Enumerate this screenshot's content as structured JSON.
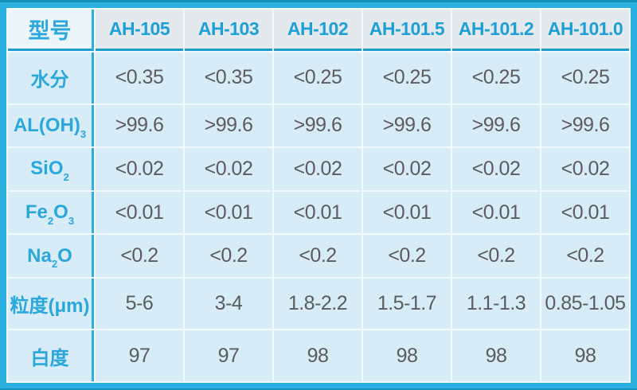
{
  "chart_data": {
    "type": "table",
    "corner_header": "型号",
    "corner_header_parts": [
      {
        "t": "型号"
      }
    ],
    "columns": [
      "AH-105",
      "AH-103",
      "AH-102",
      "AH-101.5",
      "AH-101.2",
      "AH-101.0"
    ],
    "rows": [
      {
        "header": "水分",
        "header_parts": [
          {
            "t": "水分"
          }
        ],
        "values": [
          "<0.35",
          "<0.35",
          "<0.25",
          "<0.25",
          "<0.25",
          "<0.25"
        ]
      },
      {
        "header": "AL(OH)3",
        "header_parts": [
          {
            "t": "AL(OH)"
          },
          {
            "t": "3",
            "sub": true
          }
        ],
        "values": [
          ">99.6",
          ">99.6",
          ">99.6",
          ">99.6",
          ">99.6",
          ">99.6"
        ]
      },
      {
        "header": "SiO2",
        "header_parts": [
          {
            "t": "SiO"
          },
          {
            "t": "2",
            "sub": true
          }
        ],
        "values": [
          "<0.02",
          "<0.02",
          "<0.02",
          "<0.02",
          "<0.02",
          "<0.02"
        ]
      },
      {
        "header": "Fe2O3",
        "header_parts": [
          {
            "t": "Fe"
          },
          {
            "t": "2",
            "sub": true
          },
          {
            "t": "O"
          },
          {
            "t": "3",
            "sub": true
          }
        ],
        "values": [
          "<0.01",
          "<0.01",
          "<0.01",
          "<0.01",
          "<0.01",
          "<0.01"
        ]
      },
      {
        "header": "Na2O",
        "header_parts": [
          {
            "t": "Na"
          },
          {
            "t": "2",
            "sub": true
          },
          {
            "t": "O"
          }
        ],
        "values": [
          "<0.2",
          "<0.2",
          "<0.2",
          "<0.2",
          "<0.2",
          "<0.2"
        ]
      },
      {
        "header": "粒度(μm)",
        "header_parts": [
          {
            "t": "粒度(μm)"
          }
        ],
        "values": [
          "5-6",
          "3-4",
          "1.8-2.2",
          "1.5-1.7",
          "1.1-1.3",
          "0.85-1.05"
        ]
      },
      {
        "header": "白度",
        "header_parts": [
          {
            "t": "白度"
          }
        ],
        "values": [
          "97",
          "97",
          "98",
          "98",
          "98",
          "98"
        ]
      }
    ]
  },
  "colors": {
    "frame_border": "#2bb1e1",
    "frame_edge": "#1792ba",
    "header_divider": "#1e9dca",
    "column_divider": "#2caede",
    "corner_bg": "#ecf5fa",
    "header_bg": "#e4e9ed",
    "cell_bg": "#d8ecf7",
    "gap_bg": "#f2f9fd",
    "header_text": "#1da0d6",
    "label_text": "#2aa7db",
    "value_text": "#5a5c5f"
  }
}
